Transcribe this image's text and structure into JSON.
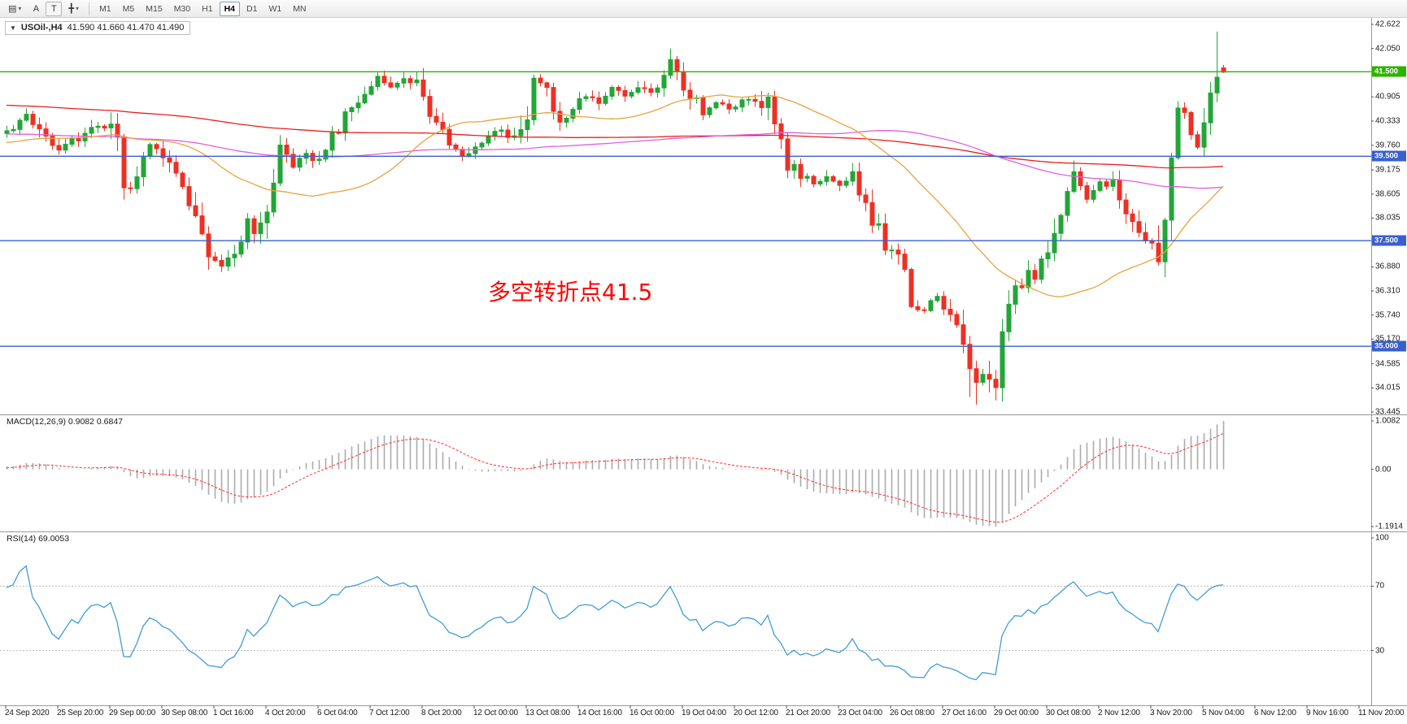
{
  "toolbar": {
    "tools": [
      {
        "name": "chart-list-menu",
        "glyph": "▤",
        "caret": true
      },
      {
        "name": "arrow-tool",
        "glyph": "A",
        "caret": false
      },
      {
        "name": "text-tool",
        "glyph": "T",
        "caret": false,
        "boxed": true
      },
      {
        "name": "line-studies",
        "glyph": "╋",
        "caret": true
      }
    ],
    "timeframes": [
      "M1",
      "M5",
      "M15",
      "M30",
      "H1",
      "H4",
      "D1",
      "W1",
      "MN"
    ],
    "active_timeframe": "H4"
  },
  "chart": {
    "symbol_period": "USOil-,H4",
    "ohlc_text": "41.590 41.660 41.470 41.490"
  },
  "annotation": {
    "text": "多空转折点41.5",
    "color": "#FF0000"
  },
  "price_axis": {
    "labels": [
      "42.622",
      "42.050",
      "40.905",
      "40.333",
      "39.760",
      "39.175",
      "38.605",
      "38.035",
      "36.880",
      "36.310",
      "35.740",
      "35.170",
      "34.585",
      "34.015",
      "33.445"
    ],
    "tags": [
      {
        "value": "41.500",
        "price": 41.5,
        "color": "#2DB200"
      },
      {
        "value": "39.500",
        "price": 39.5,
        "color": "#3A5FCD"
      },
      {
        "value": "37.500",
        "price": 37.5,
        "color": "#3A5FCD"
      },
      {
        "value": "35.000",
        "price": 35.0,
        "color": "#3A5FCD"
      }
    ]
  },
  "hlines": [
    {
      "price": 41.5,
      "color": "#2DB200"
    },
    {
      "price": 39.5,
      "color": "#3A5FCD"
    },
    {
      "price": 37.5,
      "color": "#3A5FCD"
    },
    {
      "price": 35.0,
      "color": "#3A5FCD"
    }
  ],
  "indicators": {
    "macd": {
      "label": "MACD(12,26,9) 0.9082 0.6847",
      "axis": [
        "1.0082",
        "0.00",
        "-1.1914"
      ],
      "values": {
        "macd": 0.9082,
        "signal": 0.6847
      }
    },
    "rsi": {
      "label": "RSI(14) 69.0053",
      "axis": [
        "100",
        "70",
        "30"
      ],
      "levels": [
        70,
        30
      ],
      "value": 69.0053
    }
  },
  "time_axis": {
    "labels": [
      "24 Sep 2020",
      "25 Sep 20:00",
      "29 Sep 00:00",
      "30 Sep 08:00",
      "1 Oct 16:00",
      "4 Oct 20:00",
      "6 Oct 04:00",
      "7 Oct 12:00",
      "8 Oct 20:00",
      "12 Oct 00:00",
      "13 Oct 08:00",
      "14 Oct 16:00",
      "16 Oct 00:00",
      "19 Oct 04:00",
      "20 Oct 12:00",
      "21 Oct 20:00",
      "23 Oct 04:00",
      "26 Oct 08:00",
      "27 Oct 16:00",
      "29 Oct 00:00",
      "30 Oct 08:00",
      "2 Nov 12:00",
      "3 Nov 20:00",
      "5 Nov 04:00",
      "6 Nov 12:00",
      "9 Nov 16:00",
      "11 Nov 20:00"
    ]
  },
  "chart_data": {
    "type": "candlestick",
    "symbol": "USOil-",
    "timeframe": "H4",
    "current_bar": {
      "open": 41.59,
      "high": 41.66,
      "low": 41.47,
      "close": 41.49
    },
    "price_range": [
      33.445,
      42.622
    ],
    "macd_range": [
      -1.1914,
      1.0082
    ],
    "rsi_range": [
      0,
      100
    ],
    "count": 188,
    "waypoints": [
      [
        0,
        40.1
      ],
      [
        3,
        40.45
      ],
      [
        8,
        39.7
      ],
      [
        12,
        40.05
      ],
      [
        15,
        40.2
      ],
      [
        17,
        40.05
      ],
      [
        18,
        38.7
      ],
      [
        20,
        39.05
      ],
      [
        22,
        39.75
      ],
      [
        26,
        39.25
      ],
      [
        28,
        38.45
      ],
      [
        31,
        37.3
      ],
      [
        33,
        36.95
      ],
      [
        35,
        37.25
      ],
      [
        37,
        37.9
      ],
      [
        39,
        37.7
      ],
      [
        40,
        38.35
      ],
      [
        42,
        39.7
      ],
      [
        44,
        39.2
      ],
      [
        46,
        39.6
      ],
      [
        48,
        39.4
      ],
      [
        50,
        40.0
      ],
      [
        53,
        40.6
      ],
      [
        55,
        41.0
      ],
      [
        57,
        41.35
      ],
      [
        59,
        41.1
      ],
      [
        61,
        41.35
      ],
      [
        63,
        41.2
      ],
      [
        65,
        40.4
      ],
      [
        67,
        40.15
      ],
      [
        68,
        39.9
      ],
      [
        70,
        39.55
      ],
      [
        72,
        39.7
      ],
      [
        74,
        39.9
      ],
      [
        76,
        40.15
      ],
      [
        78,
        39.9
      ],
      [
        80,
        40.6
      ],
      [
        81,
        41.35
      ],
      [
        83,
        41.1
      ],
      [
        85,
        40.3
      ],
      [
        87,
        40.5
      ],
      [
        89,
        41.0
      ],
      [
        91,
        40.8
      ],
      [
        93,
        41.1
      ],
      [
        95,
        40.9
      ],
      [
        97,
        41.05
      ],
      [
        100,
        41.1
      ],
      [
        102,
        41.75
      ],
      [
        103,
        41.5
      ],
      [
        105,
        41.0
      ],
      [
        107,
        40.55
      ],
      [
        109,
        40.8
      ],
      [
        111,
        40.6
      ],
      [
        113,
        40.85
      ],
      [
        117,
        40.75
      ],
      [
        118,
        40.15
      ],
      [
        120,
        39.3
      ],
      [
        122,
        39.1
      ],
      [
        124,
        38.85
      ],
      [
        126,
        39.0
      ],
      [
        128,
        38.8
      ],
      [
        130,
        39.05
      ],
      [
        131,
        38.6
      ],
      [
        133,
        38.1
      ],
      [
        135,
        37.3
      ],
      [
        137,
        37.4
      ],
      [
        139,
        36.1
      ],
      [
        141,
        35.9
      ],
      [
        143,
        36.2
      ],
      [
        145,
        35.8
      ],
      [
        147,
        35.3
      ],
      [
        148,
        34.3
      ],
      [
        149,
        33.95
      ],
      [
        150,
        34.4
      ],
      [
        152,
        34.2
      ],
      [
        153,
        35.2
      ],
      [
        155,
        36.3
      ],
      [
        157,
        36.8
      ],
      [
        158,
        36.5
      ],
      [
        160,
        37.5
      ],
      [
        162,
        38.3
      ],
      [
        164,
        39.1
      ],
      [
        166,
        38.55
      ],
      [
        168,
        38.8
      ],
      [
        170,
        38.9
      ],
      [
        172,
        38.3
      ],
      [
        173,
        37.9
      ],
      [
        175,
        37.45
      ],
      [
        177,
        37.25
      ],
      [
        178,
        38.4
      ],
      [
        179,
        39.9
      ],
      [
        180,
        40.8
      ],
      [
        181,
        40.5
      ],
      [
        182,
        39.9
      ],
      [
        183,
        39.7
      ],
      [
        184,
        40.4
      ],
      [
        185,
        40.9
      ],
      [
        186,
        41.59
      ],
      [
        187,
        41.49
      ]
    ],
    "warmup": [
      [
        -220,
        41.2
      ],
      [
        -180,
        41.8
      ],
      [
        -130,
        41.3
      ],
      [
        -90,
        40.4
      ],
      [
        -50,
        39.9
      ],
      [
        -20,
        39.7
      ],
      [
        -1,
        40.0
      ]
    ],
    "overrides": {
      "42": {
        "h": 40.0
      },
      "102": {
        "h": 42.05
      },
      "148": {
        "l": 33.8
      },
      "149": {
        "l": 33.62
      },
      "152": {
        "l": 33.72
      },
      "164": {
        "h": 39.4
      },
      "186": {
        "h": 42.45
      },
      "187": {
        "o": 41.59,
        "h": 41.66,
        "l": 41.47,
        "c": 41.49
      }
    },
    "colors": {
      "up": "#21A637",
      "down": "#EE3024",
      "ma_fast": "#E8A33D",
      "ma_mid": "#E060E0",
      "ma_slow": "#E82020",
      "macd_hist": "#ABABAB",
      "macd_signal": "#FF2D2D",
      "rsi": "#3E9CD9"
    }
  }
}
